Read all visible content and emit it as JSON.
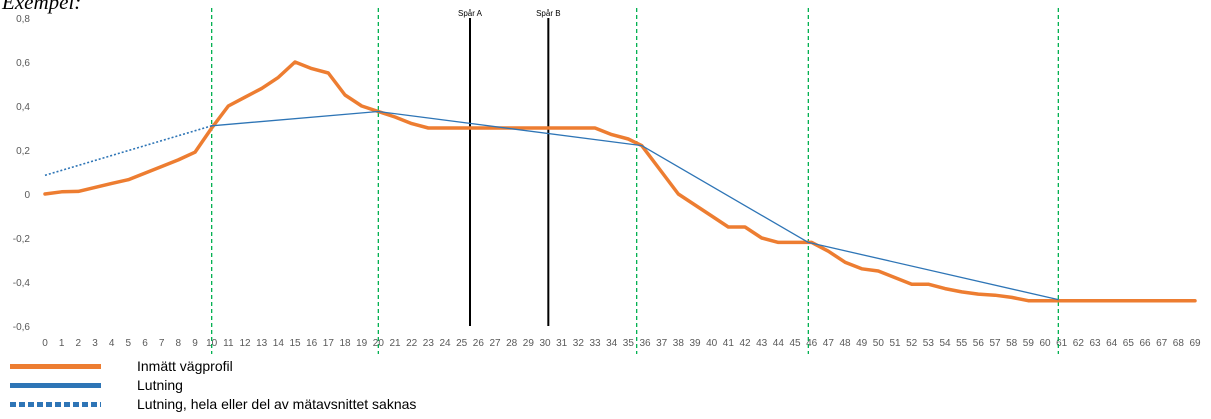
{
  "heading": "Exempel:",
  "colors": {
    "profile": "#ED7D31",
    "slope": "#2E75B6",
    "gridline": "#00B050",
    "track": "#000000"
  },
  "legend": [
    {
      "label": "Inmätt vägprofil",
      "style": "solid",
      "color": "#ED7D31"
    },
    {
      "label": "Lutning",
      "style": "solid",
      "color": "#2E75B6"
    },
    {
      "label": "Lutning, hela eller del av mätavsnittet saknas",
      "style": "dotted",
      "color": "#2E75B6"
    }
  ],
  "chart_data": {
    "type": "line",
    "xlim": [
      0,
      69
    ],
    "ylim": [
      -0.6,
      0.8
    ],
    "yticks": [
      0.8,
      0.6,
      0.4,
      0.2,
      0,
      -0.2,
      -0.4,
      -0.6
    ],
    "ytick_labels": [
      "0,8",
      "0,6",
      "0,4",
      "0,2",
      "0",
      "-0,2",
      "-0,4",
      "-0,6"
    ],
    "xticks": [
      0,
      1,
      2,
      3,
      4,
      5,
      6,
      7,
      8,
      9,
      10,
      11,
      12,
      13,
      14,
      15,
      16,
      17,
      18,
      19,
      20,
      21,
      22,
      23,
      24,
      25,
      26,
      27,
      28,
      29,
      30,
      31,
      32,
      33,
      34,
      35,
      36,
      37,
      38,
      39,
      40,
      41,
      42,
      43,
      44,
      45,
      46,
      47,
      48,
      49,
      50,
      51,
      52,
      53,
      54,
      55,
      56,
      57,
      58,
      59,
      60,
      61,
      62,
      63,
      64,
      65,
      66,
      67,
      68,
      69
    ],
    "grid": false,
    "section_lines_x": [
      10,
      20,
      35.5,
      45.8,
      60.8
    ],
    "tracks": [
      {
        "label": "Spår A",
        "x": 25.5
      },
      {
        "label": "Spår B",
        "x": 30.2
      }
    ],
    "series": [
      {
        "name": "Inmätt vägprofil",
        "style": "solid",
        "points": [
          [
            0,
            0
          ],
          [
            1,
            0.01
          ],
          [
            2,
            0.012
          ],
          [
            3,
            0.03
          ],
          [
            4,
            0.048
          ],
          [
            5,
            0.065
          ],
          [
            6,
            0.095
          ],
          [
            7,
            0.125
          ],
          [
            8,
            0.155
          ],
          [
            9,
            0.19
          ],
          [
            10,
            0.3
          ],
          [
            11,
            0.4
          ],
          [
            12,
            0.44
          ],
          [
            13,
            0.48
          ],
          [
            14,
            0.53
          ],
          [
            15,
            0.6
          ],
          [
            16,
            0.57
          ],
          [
            17,
            0.55
          ],
          [
            18,
            0.45
          ],
          [
            19,
            0.4
          ],
          [
            20,
            0.375
          ],
          [
            21,
            0.35
          ],
          [
            22,
            0.32
          ],
          [
            23,
            0.3
          ],
          [
            24,
            0.3
          ],
          [
            25,
            0.3
          ],
          [
            26,
            0.3
          ],
          [
            27,
            0.3
          ],
          [
            28,
            0.3
          ],
          [
            29,
            0.3
          ],
          [
            30,
            0.3
          ],
          [
            31,
            0.3
          ],
          [
            32,
            0.3
          ],
          [
            33,
            0.3
          ],
          [
            34,
            0.27
          ],
          [
            35,
            0.25
          ],
          [
            35.8,
            0.22
          ],
          [
            37,
            0.1
          ],
          [
            38,
            0
          ],
          [
            39,
            -0.05
          ],
          [
            40,
            -0.1
          ],
          [
            41,
            -0.15
          ],
          [
            42,
            -0.15
          ],
          [
            43,
            -0.2
          ],
          [
            44,
            -0.22
          ],
          [
            45,
            -0.22
          ],
          [
            46,
            -0.22
          ],
          [
            47,
            -0.26
          ],
          [
            48,
            -0.31
          ],
          [
            49,
            -0.34
          ],
          [
            50,
            -0.35
          ],
          [
            51,
            -0.38
          ],
          [
            52,
            -0.41
          ],
          [
            53,
            -0.41
          ],
          [
            54,
            -0.43
          ],
          [
            55,
            -0.445
          ],
          [
            56,
            -0.455
          ],
          [
            57,
            -0.46
          ],
          [
            58,
            -0.47
          ],
          [
            59,
            -0.485
          ],
          [
            60,
            -0.485
          ],
          [
            61,
            -0.485
          ],
          [
            62,
            -0.485
          ],
          [
            63,
            -0.485
          ],
          [
            64,
            -0.485
          ],
          [
            65,
            -0.485
          ],
          [
            66,
            -0.485
          ],
          [
            67,
            -0.485
          ],
          [
            68,
            -0.485
          ],
          [
            69,
            -0.485
          ]
        ]
      },
      {
        "name": "Lutning",
        "style": "solid",
        "points": [
          [
            10,
            0.31
          ],
          [
            20,
            0.375
          ],
          [
            35.8,
            0.22
          ],
          [
            45.8,
            -0.22
          ],
          [
            60.8,
            -0.48
          ]
        ]
      },
      {
        "name": "Lutning, hela eller del av mätavsnittet saknas",
        "style": "dotted",
        "points": [
          [
            0,
            0.085
          ],
          [
            10,
            0.31
          ]
        ]
      }
    ]
  }
}
